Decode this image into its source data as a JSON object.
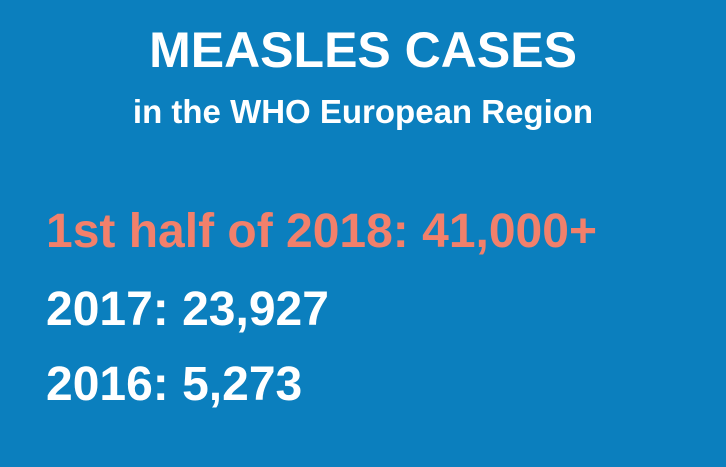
{
  "title": "MEASLES CASES",
  "subtitle": "in the WHO European Region",
  "stats": [
    {
      "label": "1st half of 2018: 41,000+",
      "color": "#f2806b"
    },
    {
      "label": "2017: 23,927",
      "color": "#ffffff"
    },
    {
      "label": "2016: 5,273",
      "color": "#ffffff"
    }
  ],
  "colors": {
    "background": "#0b7fbe",
    "highlight": "#f2806b",
    "text": "#ffffff"
  }
}
